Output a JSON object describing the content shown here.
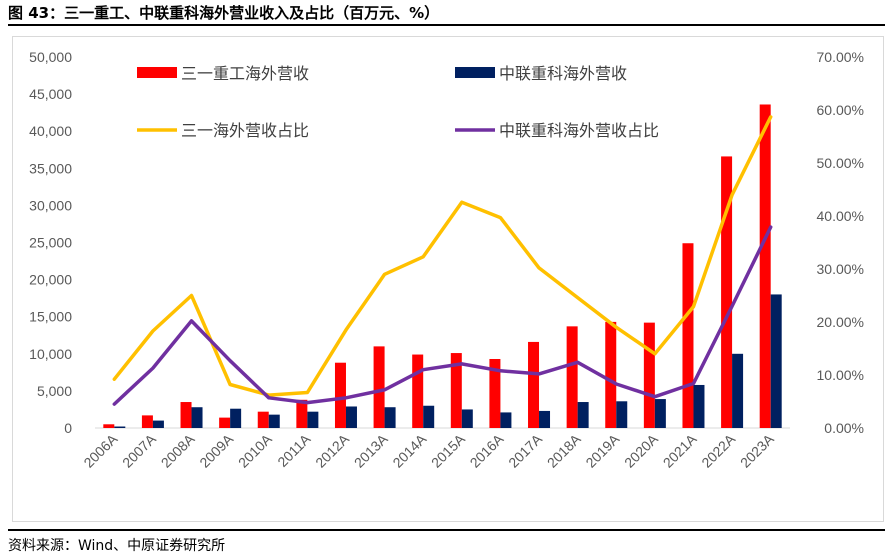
{
  "figure": {
    "title": "图 43：三一重工、中联重科海外营业收入及占比（百万元、%）",
    "source": "资料来源：Wind、中原证券研究所"
  },
  "colors": {
    "sany_bar": "#ff0000",
    "zoomlion_bar": "#002060",
    "sany_line": "#ffc000",
    "zoomlion_line": "#7030a0"
  },
  "chart_data": {
    "type": "bar",
    "categories": [
      "2006A",
      "2007A",
      "2008A",
      "2009A",
      "2010A",
      "2011A",
      "2012A",
      "2013A",
      "2014A",
      "2015A",
      "2016A",
      "2017A",
      "2018A",
      "2019A",
      "2020A",
      "2021A",
      "2022A",
      "2023A"
    ],
    "series": [
      {
        "name": "三一重工海外营收",
        "kind": "bar",
        "axis": "left",
        "values": [
          500,
          1700,
          3500,
          1400,
          2200,
          3800,
          8800,
          11000,
          9900,
          10100,
          9300,
          11600,
          13700,
          14300,
          14200,
          24900,
          36600,
          43600
        ]
      },
      {
        "name": "中联重科海外营收",
        "kind": "bar",
        "axis": "left",
        "values": [
          200,
          1000,
          2800,
          2600,
          1800,
          2200,
          2900,
          2800,
          3000,
          2500,
          2100,
          2300,
          3500,
          3600,
          3900,
          5800,
          10000,
          18000
        ]
      },
      {
        "name": "三一海外营收占比",
        "kind": "line",
        "axis": "right",
        "values": [
          9.2,
          18.3,
          25.0,
          8.2,
          6.2,
          6.7,
          18.5,
          29.0,
          32.3,
          42.6,
          39.7,
          30.2,
          24.6,
          19.0,
          14.0,
          22.9,
          44.0,
          58.7
        ]
      },
      {
        "name": "中联重科海外营收占比",
        "kind": "line",
        "axis": "right",
        "values": [
          4.5,
          11.3,
          20.2,
          12.7,
          5.7,
          4.8,
          5.7,
          7.2,
          11.0,
          12.1,
          10.8,
          10.2,
          12.4,
          8.3,
          5.9,
          8.4,
          23.0,
          37.9
        ]
      }
    ],
    "y_left": {
      "ylim": [
        0,
        50000
      ],
      "ticks": [
        "0",
        "5,000",
        "10,000",
        "15,000",
        "20,000",
        "25,000",
        "30,000",
        "35,000",
        "40,000",
        "45,000",
        "50,000"
      ]
    },
    "y_right": {
      "ylim": [
        0,
        70
      ],
      "ticks": [
        "0.00%",
        "10.00%",
        "20.00%",
        "30.00%",
        "40.00%",
        "50.00%",
        "60.00%",
        "70.00%"
      ]
    },
    "legend": {
      "placement": "top",
      "columns": 2
    },
    "grid": false
  }
}
